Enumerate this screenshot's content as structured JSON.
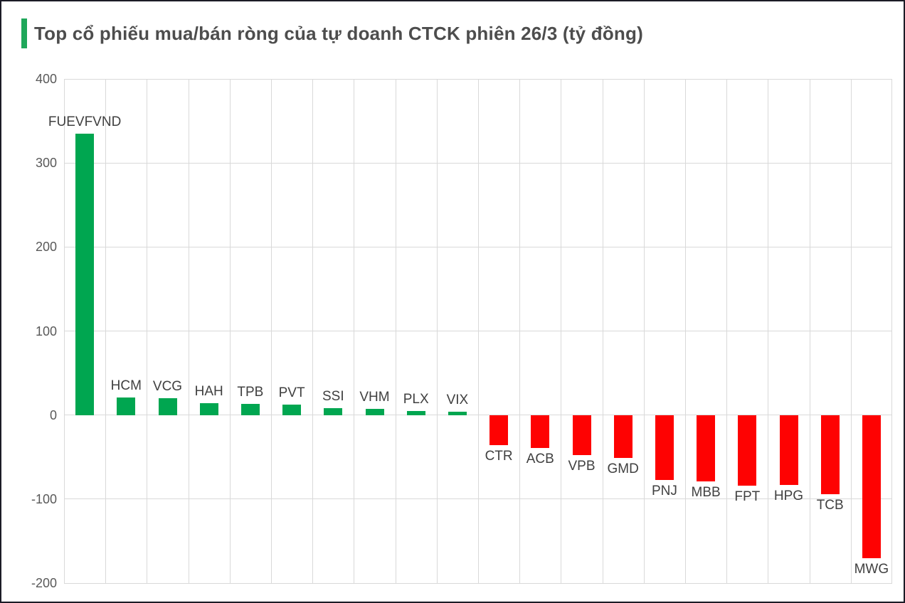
{
  "title": {
    "text": "Top cổ phiếu mua/bán ròng của tự doanh CTCK phiên 26/3 (tỷ đồng)",
    "accent_color": "#1fa75a",
    "text_color": "#4d4d4d"
  },
  "chart_data": {
    "type": "bar",
    "title": "Top cổ phiếu mua/bán ròng của tự doanh CTCK phiên 26/3 (tỷ đồng)",
    "unit": "tỷ đồng",
    "categories": [
      "FUEVFVND",
      "HCM",
      "VCG",
      "HAH",
      "TPB",
      "PVT",
      "SSI",
      "VHM",
      "PLX",
      "VIX",
      "CTR",
      "ACB",
      "VPB",
      "GMD",
      "PNJ",
      "MBB",
      "FPT",
      "HPG",
      "TCB",
      "MWG"
    ],
    "values": [
      335,
      21,
      20,
      14,
      13,
      12,
      8,
      7,
      5,
      4,
      -36,
      -39,
      -48,
      -51,
      -77,
      -79,
      -84,
      -83,
      -94,
      -170
    ],
    "ylim": [
      -200,
      400
    ],
    "yticks": [
      400,
      300,
      200,
      100,
      0,
      -100,
      -200
    ],
    "grid": true,
    "legend": "none",
    "xlabel": "",
    "ylabel": "",
    "positive_color": "#00a650",
    "negative_color": "#fe0202",
    "gridline_color": "#d9d9d9",
    "tick_label_color": "#595959",
    "bar_label_color": "#404040"
  }
}
